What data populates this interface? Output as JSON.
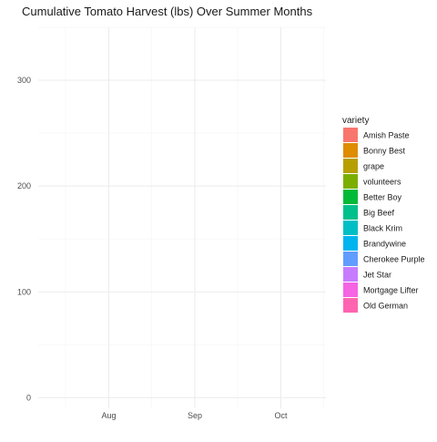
{
  "chart_data": {
    "type": "area",
    "title": "Cumulative Tomato Harvest (lbs) Over Summer Months",
    "xlabel": "",
    "ylabel": "",
    "x_ticks": [
      "Aug",
      "Sep",
      "Oct"
    ],
    "y_ticks": [
      0,
      100,
      200,
      300
    ],
    "ylim": [
      -10,
      350
    ],
    "grid": true,
    "legend": {
      "title": "variety",
      "position": "right"
    },
    "series": [
      {
        "name": "Amish Paste",
        "color": "#F8766D",
        "values": []
      },
      {
        "name": "Bonny Best",
        "color": "#DE8C00",
        "values": []
      },
      {
        "name": "grape",
        "color": "#B79F00",
        "values": []
      },
      {
        "name": "volunteers",
        "color": "#7CAE00",
        "values": []
      },
      {
        "name": "Better Boy",
        "color": "#00BA38",
        "values": []
      },
      {
        "name": "Big Beef",
        "color": "#00C08B",
        "values": []
      },
      {
        "name": "Black Krim",
        "color": "#00BFC4",
        "values": []
      },
      {
        "name": "Brandywine",
        "color": "#00B4F0",
        "values": []
      },
      {
        "name": "Cherokee Purple",
        "color": "#619CFF",
        "values": []
      },
      {
        "name": "Jet Star",
        "color": "#C77CFF",
        "values": []
      },
      {
        "name": "Mortgage Lifter",
        "color": "#F564E3",
        "values": []
      },
      {
        "name": "Old German",
        "color": "#FF64B0",
        "values": []
      }
    ]
  }
}
